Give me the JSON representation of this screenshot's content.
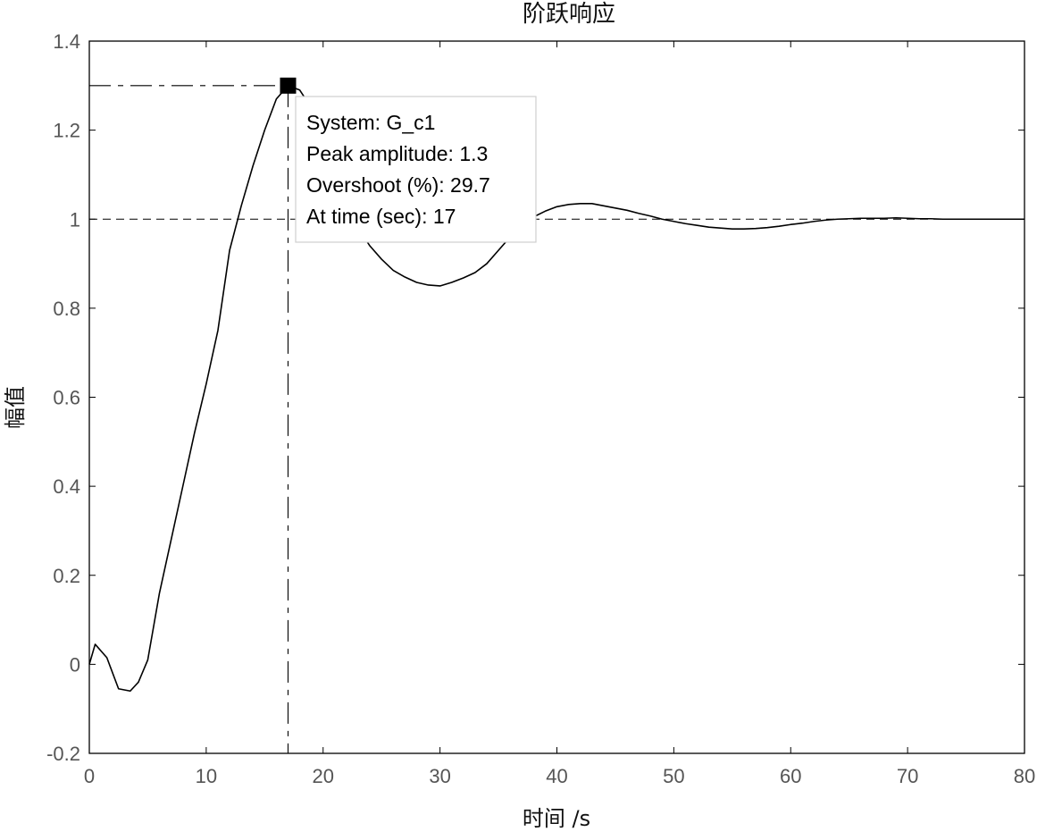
{
  "chart_data": {
    "type": "line",
    "title": "阶跃响应",
    "xlabel": "时间 /s",
    "ylabel": "幅值",
    "xlim": [
      0,
      80
    ],
    "ylim": [
      -0.2,
      1.4
    ],
    "xticks": [
      0,
      10,
      20,
      30,
      40,
      50,
      60,
      70,
      80
    ],
    "yticks": [
      -0.2,
      0,
      0.2,
      0.4,
      0.6,
      0.8,
      1,
      1.2,
      1.4
    ],
    "xtick_labels": [
      "0",
      "10",
      "20",
      "30",
      "40",
      "50",
      "60",
      "70",
      "80"
    ],
    "ytick_labels": [
      "-0.2",
      "0",
      "0.2",
      "0.4",
      "0.6",
      "0.8",
      "1",
      "1.2",
      "1.4"
    ],
    "grid": false,
    "reference_line": 1,
    "series": [
      {
        "x": [
          0,
          0.5,
          1.5,
          2.5,
          3.5,
          4.2,
          5,
          6,
          7,
          8,
          9,
          10,
          11,
          12,
          13,
          14,
          15,
          16,
          17,
          18,
          19,
          20,
          21,
          22,
          23,
          24,
          25,
          26,
          27,
          28,
          29,
          30,
          31,
          32,
          33,
          34,
          35,
          36,
          37,
          38,
          39,
          40,
          41,
          42,
          43,
          44,
          45,
          46,
          47,
          48,
          49,
          50,
          51,
          52,
          53,
          54,
          55,
          56,
          57,
          58,
          59,
          60,
          61,
          62,
          63,
          64,
          65,
          66,
          67,
          68,
          69,
          70,
          71,
          72,
          73,
          74,
          75,
          76,
          77,
          78,
          79,
          80
        ],
        "y": [
          0,
          0.045,
          0.015,
          -0.055,
          -0.06,
          -0.04,
          0.01,
          0.16,
          0.28,
          0.4,
          0.52,
          0.63,
          0.75,
          0.93,
          1.03,
          1.12,
          1.2,
          1.27,
          1.3,
          1.29,
          1.25,
          1.18,
          1.1,
          1.04,
          0.98,
          0.94,
          0.91,
          0.885,
          0.87,
          0.858,
          0.852,
          0.85,
          0.858,
          0.868,
          0.88,
          0.9,
          0.93,
          0.96,
          0.99,
          1.005,
          1.018,
          1.028,
          1.033,
          1.035,
          1.035,
          1.03,
          1.025,
          1.02,
          1.013,
          1.007,
          1.0,
          0.995,
          0.99,
          0.986,
          0.982,
          0.98,
          0.978,
          0.978,
          0.979,
          0.981,
          0.984,
          0.988,
          0.991,
          0.995,
          0.998,
          1.0,
          1.001,
          1.002,
          1.002,
          1.002,
          1.003,
          1.002,
          1.001,
          1.001,
          1.0,
          1.0,
          1.0,
          1.0,
          1.0,
          1.0,
          1.0,
          1.0
        ]
      }
    ],
    "peak": {
      "x": 17,
      "y": 1.3
    },
    "annotation": {
      "lines": [
        "System: G_c1",
        "Peak amplitude: 1.3",
        "Overshoot (%): 29.7",
        "At time (sec): 17"
      ]
    }
  }
}
